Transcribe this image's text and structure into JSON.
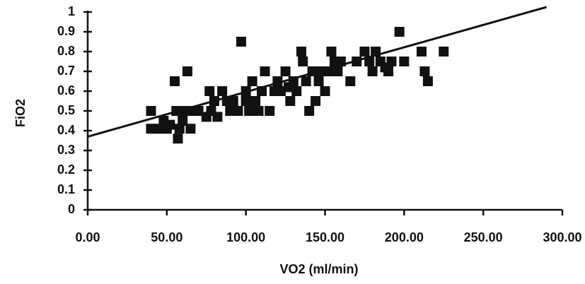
{
  "chart_data": {
    "type": "scatter",
    "x_label": "VO2 (ml/min)",
    "y_label": "FiO2",
    "color": "#111111",
    "xlim": [
      0,
      300
    ],
    "ylim": [
      0,
      1
    ],
    "xticks": [
      {
        "value": 0,
        "label": "0.00"
      },
      {
        "value": 50,
        "label": "50.00"
      },
      {
        "value": 100,
        "label": "100.00"
      },
      {
        "value": 150,
        "label": "150.00"
      },
      {
        "value": 200,
        "label": "200.00"
      },
      {
        "value": 250,
        "label": "250.00"
      },
      {
        "value": 300,
        "label": "300.00"
      }
    ],
    "yticks": [
      0,
      0.1,
      0.2,
      0.3,
      0.4,
      0.5,
      0.6,
      0.7,
      0.8,
      0.9,
      1
    ],
    "x": [
      40,
      40,
      45,
      48,
      50,
      52,
      55,
      56,
      57,
      58,
      60,
      62,
      63,
      65,
      66,
      70,
      75,
      77,
      78,
      80,
      82,
      85,
      88,
      90,
      92,
      95,
      97,
      100,
      100,
      102,
      104,
      106,
      108,
      110,
      112,
      115,
      118,
      120,
      122,
      125,
      127,
      128,
      130,
      132,
      135,
      136,
      138,
      140,
      142,
      144,
      146,
      148,
      150,
      152,
      154,
      156,
      158,
      160,
      166,
      170,
      175,
      178,
      180,
      182,
      185,
      188,
      190,
      192,
      197,
      200,
      211,
      213,
      215,
      225
    ],
    "y": [
      0.5,
      0.41,
      0.41,
      0.45,
      0.41,
      0.43,
      0.65,
      0.5,
      0.36,
      0.41,
      0.45,
      0.5,
      0.7,
      0.41,
      0.5,
      0.5,
      0.47,
      0.6,
      0.5,
      0.55,
      0.47,
      0.6,
      0.55,
      0.5,
      0.55,
      0.5,
      0.85,
      0.6,
      0.55,
      0.5,
      0.65,
      0.55,
      0.5,
      0.6,
      0.7,
      0.5,
      0.6,
      0.65,
      0.6,
      0.7,
      0.62,
      0.55,
      0.65,
      0.6,
      0.8,
      0.75,
      0.65,
      0.5,
      0.7,
      0.55,
      0.65,
      0.7,
      0.6,
      0.7,
      0.8,
      0.75,
      0.7,
      0.75,
      0.65,
      0.75,
      0.8,
      0.75,
      0.7,
      0.8,
      0.75,
      0.72,
      0.7,
      0.75,
      0.9,
      0.75,
      0.8,
      0.7,
      0.65,
      0.8
    ],
    "trendline": {
      "x": [
        0,
        290
      ],
      "y": [
        0.37,
        1.025
      ]
    }
  }
}
